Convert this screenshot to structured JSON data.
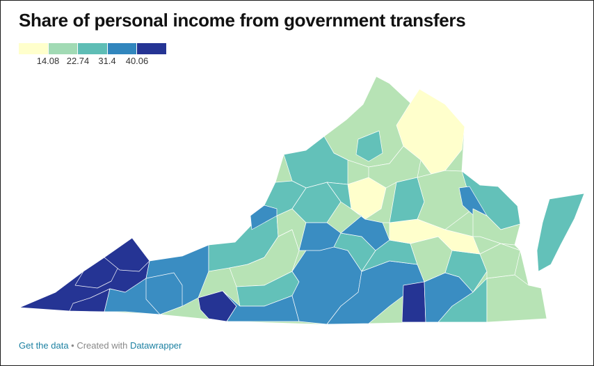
{
  "title": "Share of personal income from government transfers",
  "legend": {
    "colors": [
      "#ffffcc",
      "#a1dab4",
      "#5ebdb5",
      "#3186bd",
      "#253494"
    ],
    "ticks": [
      "14.08",
      "22.74",
      "31.4",
      "40.06"
    ]
  },
  "footer": {
    "get_data": "Get the data",
    "separator": " • ",
    "created_with": "Created with ",
    "datawrapper": "Datawrapper"
  },
  "map": {
    "region": "Virginia",
    "unit": "counties and independent cities",
    "colors": {
      "bin1": "#ffffcc",
      "bin2": "#b7e3b5",
      "bin3": "#63c1b9",
      "bin4": "#3a8dc2",
      "bin5": "#253494"
    }
  }
}
